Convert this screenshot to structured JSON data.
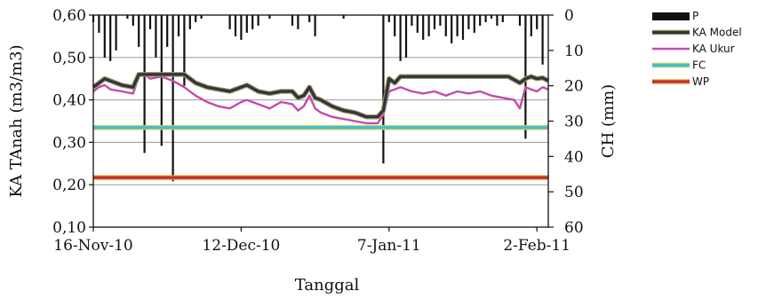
{
  "chart_data": {
    "type": "line",
    "x_label": "Tanggal",
    "y_label_left": "KA TAnah (m3/m3)",
    "y_label_right": "CH (mm)",
    "x_range": [
      "2010-11-16",
      "2011-02-04"
    ],
    "x_ticks": [
      {
        "date": "2010-11-16",
        "label": "16-Nov-10"
      },
      {
        "date": "2010-12-12",
        "label": "12-Dec-10"
      },
      {
        "date": "2011-01-07",
        "label": "7-Jan-11"
      },
      {
        "date": "2011-02-02",
        "label": "2-Feb-11"
      }
    ],
    "y_left": {
      "min": 0.1,
      "max": 0.6,
      "ticks": [
        "0,10",
        "0,20",
        "0,30",
        "0,40",
        "0,50",
        "0,60"
      ],
      "tick_values": [
        0.1,
        0.2,
        0.3,
        0.4,
        0.5,
        0.6
      ]
    },
    "y_right": {
      "min": 0,
      "max": 60,
      "inverted": true,
      "ticks": [
        "0",
        "10",
        "20",
        "30",
        "40",
        "50",
        "60"
      ],
      "tick_values": [
        0,
        10,
        20,
        30,
        40,
        50,
        60
      ]
    },
    "legend_position": "right",
    "series": [
      {
        "name": "P",
        "axis": "right",
        "kind": "bar",
        "color": "#111111",
        "points": [
          [
            "2010-11-16",
            2
          ],
          [
            "2010-11-17",
            5
          ],
          [
            "2010-11-18",
            12
          ],
          [
            "2010-11-19",
            13
          ],
          [
            "2010-11-20",
            10
          ],
          [
            "2010-11-22",
            1
          ],
          [
            "2010-11-23",
            3
          ],
          [
            "2010-11-24",
            9
          ],
          [
            "2010-11-25",
            39
          ],
          [
            "2010-11-26",
            4
          ],
          [
            "2010-11-27",
            12
          ],
          [
            "2010-11-28",
            37
          ],
          [
            "2010-11-29",
            9
          ],
          [
            "2010-11-30",
            47
          ],
          [
            "2010-12-01",
            6
          ],
          [
            "2010-12-02",
            20
          ],
          [
            "2010-12-03",
            4
          ],
          [
            "2010-12-04",
            2
          ],
          [
            "2010-12-05",
            1
          ],
          [
            "2010-12-10",
            4
          ],
          [
            "2010-12-11",
            6
          ],
          [
            "2010-12-12",
            7
          ],
          [
            "2010-12-13",
            5
          ],
          [
            "2010-12-14",
            4
          ],
          [
            "2010-12-15",
            3
          ],
          [
            "2010-12-17",
            1
          ],
          [
            "2010-12-21",
            3
          ],
          [
            "2010-12-22",
            4
          ],
          [
            "2010-12-24",
            2
          ],
          [
            "2010-12-25",
            6
          ],
          [
            "2010-12-30",
            1
          ],
          [
            "2011-01-06",
            42
          ],
          [
            "2011-01-07",
            2
          ],
          [
            "2011-01-08",
            6
          ],
          [
            "2011-01-09",
            13
          ],
          [
            "2011-01-10",
            12
          ],
          [
            "2011-01-11",
            3
          ],
          [
            "2011-01-12",
            5
          ],
          [
            "2011-01-13",
            7
          ],
          [
            "2011-01-14",
            6
          ],
          [
            "2011-01-15",
            4
          ],
          [
            "2011-01-16",
            3
          ],
          [
            "2011-01-17",
            6
          ],
          [
            "2011-01-18",
            8
          ],
          [
            "2011-01-19",
            6
          ],
          [
            "2011-01-20",
            7
          ],
          [
            "2011-01-21",
            4
          ],
          [
            "2011-01-22",
            5
          ],
          [
            "2011-01-23",
            3
          ],
          [
            "2011-01-24",
            2
          ],
          [
            "2011-01-25",
            1
          ],
          [
            "2011-01-26",
            3
          ],
          [
            "2011-01-27",
            2
          ],
          [
            "2011-01-30",
            3
          ],
          [
            "2011-01-31",
            35
          ],
          [
            "2011-02-01",
            6
          ],
          [
            "2011-02-02",
            4
          ],
          [
            "2011-02-03",
            14
          ]
        ]
      },
      {
        "name": "KA Model",
        "axis": "left",
        "kind": "line",
        "color": "#2b3545",
        "outline": "#a8935a",
        "points": [
          [
            "2010-11-16",
            0.43
          ],
          [
            "2010-11-18",
            0.45
          ],
          [
            "2010-11-19",
            0.445
          ],
          [
            "2010-11-21",
            0.435
          ],
          [
            "2010-11-23",
            0.43
          ],
          [
            "2010-11-24",
            0.46
          ],
          [
            "2010-11-26",
            0.46
          ],
          [
            "2010-11-28",
            0.46
          ],
          [
            "2010-11-30",
            0.46
          ],
          [
            "2010-12-02",
            0.46
          ],
          [
            "2010-12-04",
            0.44
          ],
          [
            "2010-12-06",
            0.43
          ],
          [
            "2010-12-08",
            0.425
          ],
          [
            "2010-12-10",
            0.42
          ],
          [
            "2010-12-12",
            0.43
          ],
          [
            "2010-12-13",
            0.435
          ],
          [
            "2010-12-15",
            0.42
          ],
          [
            "2010-12-17",
            0.415
          ],
          [
            "2010-12-19",
            0.42
          ],
          [
            "2010-12-21",
            0.42
          ],
          [
            "2010-12-22",
            0.405
          ],
          [
            "2010-12-23",
            0.41
          ],
          [
            "2010-12-24",
            0.43
          ],
          [
            "2010-12-25",
            0.405
          ],
          [
            "2010-12-26",
            0.4
          ],
          [
            "2010-12-28",
            0.385
          ],
          [
            "2010-12-29",
            0.38
          ],
          [
            "2010-12-30",
            0.375
          ],
          [
            "2011-01-01",
            0.37
          ],
          [
            "2011-01-03",
            0.36
          ],
          [
            "2011-01-05",
            0.36
          ],
          [
            "2011-01-06",
            0.375
          ],
          [
            "2011-01-07",
            0.45
          ],
          [
            "2011-01-08",
            0.44
          ],
          [
            "2011-01-09",
            0.455
          ],
          [
            "2011-01-11",
            0.455
          ],
          [
            "2011-01-13",
            0.455
          ],
          [
            "2011-01-16",
            0.455
          ],
          [
            "2011-01-19",
            0.455
          ],
          [
            "2011-01-22",
            0.455
          ],
          [
            "2011-01-25",
            0.455
          ],
          [
            "2011-01-28",
            0.455
          ],
          [
            "2011-01-30",
            0.44
          ],
          [
            "2011-01-31",
            0.45
          ],
          [
            "2011-02-01",
            0.455
          ],
          [
            "2011-02-02",
            0.45
          ],
          [
            "2011-02-03",
            0.452
          ],
          [
            "2011-02-04",
            0.445
          ]
        ]
      },
      {
        "name": "KA Ukur",
        "axis": "left",
        "kind": "line",
        "color": "#c54aa8",
        "points": [
          [
            "2010-11-16",
            0.42
          ],
          [
            "2010-11-17",
            0.43
          ],
          [
            "2010-11-18",
            0.435
          ],
          [
            "2010-11-19",
            0.425
          ],
          [
            "2010-11-21",
            0.42
          ],
          [
            "2010-11-23",
            0.415
          ],
          [
            "2010-11-24",
            0.455
          ],
          [
            "2010-11-25",
            0.46
          ],
          [
            "2010-11-26",
            0.45
          ],
          [
            "2010-11-28",
            0.455
          ],
          [
            "2010-11-30",
            0.445
          ],
          [
            "2010-12-02",
            0.43
          ],
          [
            "2010-12-04",
            0.41
          ],
          [
            "2010-12-06",
            0.395
          ],
          [
            "2010-12-08",
            0.385
          ],
          [
            "2010-12-10",
            0.38
          ],
          [
            "2010-12-12",
            0.395
          ],
          [
            "2010-12-13",
            0.4
          ],
          [
            "2010-12-15",
            0.39
          ],
          [
            "2010-12-17",
            0.38
          ],
          [
            "2010-12-19",
            0.395
          ],
          [
            "2010-12-21",
            0.39
          ],
          [
            "2010-12-22",
            0.375
          ],
          [
            "2010-12-23",
            0.385
          ],
          [
            "2010-12-24",
            0.41
          ],
          [
            "2010-12-25",
            0.38
          ],
          [
            "2010-12-26",
            0.37
          ],
          [
            "2010-12-28",
            0.36
          ],
          [
            "2010-12-30",
            0.355
          ],
          [
            "2011-01-01",
            0.35
          ],
          [
            "2011-01-03",
            0.345
          ],
          [
            "2011-01-05",
            0.345
          ],
          [
            "2011-01-06",
            0.365
          ],
          [
            "2011-01-07",
            0.42
          ],
          [
            "2011-01-08",
            0.425
          ],
          [
            "2011-01-09",
            0.43
          ],
          [
            "2011-01-11",
            0.42
          ],
          [
            "2011-01-13",
            0.415
          ],
          [
            "2011-01-15",
            0.42
          ],
          [
            "2011-01-17",
            0.41
          ],
          [
            "2011-01-19",
            0.42
          ],
          [
            "2011-01-21",
            0.415
          ],
          [
            "2011-01-23",
            0.42
          ],
          [
            "2011-01-25",
            0.41
          ],
          [
            "2011-01-27",
            0.405
          ],
          [
            "2011-01-29",
            0.4
          ],
          [
            "2011-01-30",
            0.38
          ],
          [
            "2011-01-31",
            0.43
          ],
          [
            "2011-02-01",
            0.425
          ],
          [
            "2011-02-02",
            0.42
          ],
          [
            "2011-02-03",
            0.43
          ],
          [
            "2011-02-04",
            0.425
          ]
        ]
      },
      {
        "name": "FC",
        "axis": "left",
        "kind": "line",
        "color": "#3fbfd0",
        "outline": "#c9cf5a",
        "points": [
          [
            "2010-11-16",
            0.335
          ],
          [
            "2011-02-04",
            0.335
          ]
        ]
      },
      {
        "name": "WP",
        "axis": "left",
        "kind": "line",
        "color": "#cc2a2a",
        "outline": "#d9b24a",
        "points": [
          [
            "2010-11-16",
            0.217
          ],
          [
            "2011-02-04",
            0.217
          ]
        ]
      }
    ]
  }
}
